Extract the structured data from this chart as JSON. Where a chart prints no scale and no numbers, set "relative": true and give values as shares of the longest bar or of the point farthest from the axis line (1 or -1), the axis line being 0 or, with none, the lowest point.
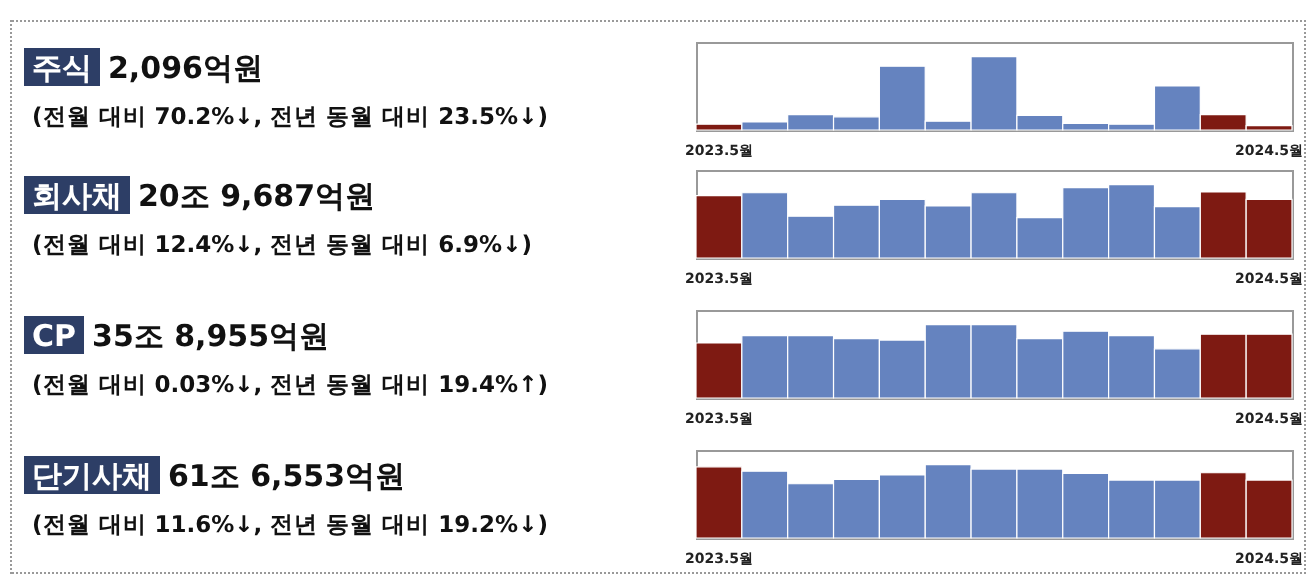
{
  "chart_data": [
    {
      "type": "bar",
      "annotations": [
        "주식",
        "2,096억원",
        "(전월 대비 70.2%↓, 전년 동월 대비 23.5%↓)"
      ],
      "relative": true,
      "categories": [
        "2023.5월",
        null,
        null,
        null,
        null,
        null,
        null,
        null,
        null,
        null,
        null,
        null,
        "2024.5월"
      ],
      "values": [
        0.08,
        0.11,
        0.21,
        0.18,
        0.87,
        0.12,
        1,
        0.2,
        0.09,
        0.08,
        0.6,
        0.21,
        0.06
      ],
      "colors": [
        "#7e1a12",
        "#6583bf",
        "#6583bf",
        "#6583bf",
        "#6583bf",
        "#6583bf",
        "#6583bf",
        "#6583bf",
        "#6583bf",
        "#6583bf",
        "#6583bf",
        "#7e1a12",
        "#7e1a12"
      ]
    },
    {
      "type": "bar",
      "annotations": [
        "회사채",
        "20조 9,687억원",
        "(전월 대비 12.4%↓, 전년 동월 대비 6.9%↓)"
      ],
      "relative": true,
      "categories": [
        "2023.5월",
        null,
        null,
        null,
        null,
        null,
        null,
        null,
        null,
        null,
        null,
        null,
        "2024.5월"
      ],
      "values": [
        0.85,
        0.89,
        0.57,
        0.72,
        0.8,
        0.71,
        0.89,
        0.55,
        0.96,
        1,
        0.7,
        0.9,
        0.8
      ],
      "colors": [
        "#7e1a12",
        "#6583bf",
        "#6583bf",
        "#6583bf",
        "#6583bf",
        "#6583bf",
        "#6583bf",
        "#6583bf",
        "#6583bf",
        "#6583bf",
        "#6583bf",
        "#7e1a12",
        "#7e1a12"
      ]
    },
    {
      "type": "bar",
      "annotations": [
        "CP",
        "35조 8,955억원",
        "(전월 대비 0.03%↓, 전년 동월 대비 19.4%↑)"
      ],
      "relative": true,
      "categories": [
        "2023.5월",
        null,
        null,
        null,
        null,
        null,
        null,
        null,
        null,
        null,
        null,
        null,
        "2024.5월"
      ],
      "values": [
        0.75,
        0.85,
        0.85,
        0.81,
        0.79,
        1,
        1,
        0.81,
        0.91,
        0.85,
        0.67,
        0.87,
        0.87
      ],
      "colors": [
        "#7e1a12",
        "#6583bf",
        "#6583bf",
        "#6583bf",
        "#6583bf",
        "#6583bf",
        "#6583bf",
        "#6583bf",
        "#6583bf",
        "#6583bf",
        "#6583bf",
        "#7e1a12",
        "#7e1a12"
      ]
    },
    {
      "type": "bar",
      "annotations": [
        "단기사채",
        "61조 6,553억원",
        "(전월 대비 11.6%↓, 전년 동월 대비 19.2%↓)"
      ],
      "relative": true,
      "categories": [
        "2023.5월",
        null,
        null,
        null,
        null,
        null,
        null,
        null,
        null,
        null,
        null,
        null,
        "2024.5월"
      ],
      "values": [
        0.97,
        0.91,
        0.74,
        0.8,
        0.86,
        1,
        0.94,
        0.94,
        0.88,
        0.79,
        0.79,
        0.89,
        0.79
      ],
      "colors": [
        "#7e1a12",
        "#6583bf",
        "#6583bf",
        "#6583bf",
        "#6583bf",
        "#6583bf",
        "#6583bf",
        "#6583bf",
        "#6583bf",
        "#6583bf",
        "#6583bf",
        "#7e1a12",
        "#7e1a12"
      ]
    }
  ]
}
